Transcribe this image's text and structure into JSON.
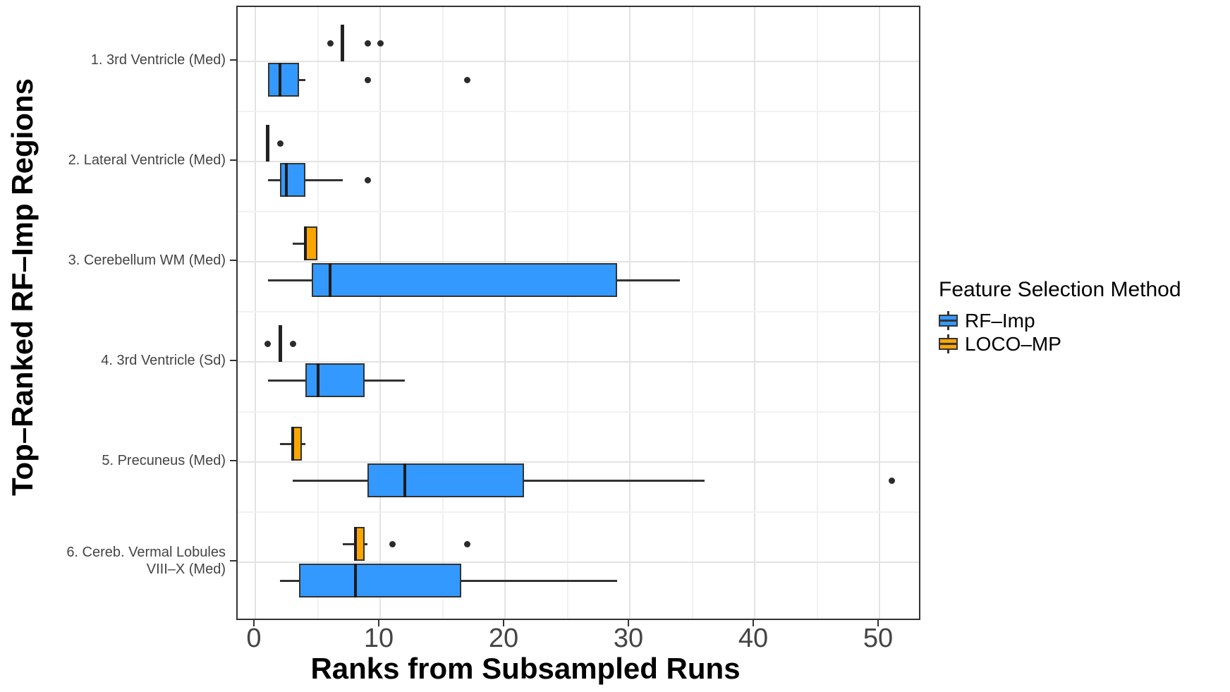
{
  "chart_data": {
    "type": "boxplot",
    "orientation": "horizontal",
    "title": "",
    "xlabel": "Ranks from Subsampled Runs",
    "ylabel": "Top–Ranked RF–Imp Regions",
    "xlim": [
      -1.5,
      53.5
    ],
    "xticks": [
      0,
      10,
      20,
      30,
      40,
      50
    ],
    "xminor_gridlines": [
      5,
      15,
      25,
      35,
      45
    ],
    "grid": "major and minor vertical gridlines; major horizontal gridline per category, minor between categories",
    "legend": {
      "title": "Feature Selection Method",
      "position": "right",
      "entries": [
        {
          "label": "RF–Imp",
          "color": "#3399FF"
        },
        {
          "label": "LOCO–MP",
          "color": "#F9A602"
        }
      ]
    },
    "series_order_within_group": [
      "LOCO–MP on top",
      "RF–Imp on bottom"
    ],
    "groups": [
      {
        "label_lines": [
          "1. 3rd Ventricle (Med)"
        ],
        "boxes": [
          {
            "series": "LOCO–MP",
            "color": "#F9A602",
            "low": 7,
            "q1": 7,
            "median": 7,
            "q3": 7,
            "high": 7,
            "outliers": [
              6,
              9,
              10
            ],
            "degenerate": true
          },
          {
            "series": "RF–Imp",
            "color": "#3399FF",
            "low": 1,
            "q1": 1,
            "median": 2,
            "q3": 3.5,
            "high": 4,
            "outliers": [
              9,
              17
            ],
            "degenerate": false
          }
        ]
      },
      {
        "label_lines": [
          "2. Lateral Ventricle (Med)"
        ],
        "boxes": [
          {
            "series": "LOCO–MP",
            "color": "#F9A602",
            "low": 1,
            "q1": 1,
            "median": 1,
            "q3": 1,
            "high": 1,
            "outliers": [
              2
            ],
            "degenerate": true
          },
          {
            "series": "RF–Imp",
            "color": "#3399FF",
            "low": 1,
            "q1": 2,
            "median": 2.5,
            "q3": 4,
            "high": 7,
            "outliers": [
              9
            ],
            "degenerate": false
          }
        ]
      },
      {
        "label_lines": [
          "3. Cerebellum WM (Med)"
        ],
        "boxes": [
          {
            "series": "LOCO–MP",
            "color": "#F9A602",
            "low": 3,
            "q1": 4,
            "median": 4,
            "q3": 5,
            "high": 5,
            "outliers": [],
            "degenerate": false
          },
          {
            "series": "RF–Imp",
            "color": "#3399FF",
            "low": 1,
            "q1": 4.5,
            "median": 6,
            "q3": 29,
            "high": 34,
            "outliers": [],
            "degenerate": false
          }
        ]
      },
      {
        "label_lines": [
          "4. 3rd Ventricle (Sd)"
        ],
        "boxes": [
          {
            "series": "LOCO–MP",
            "color": "#F9A602",
            "low": 2,
            "q1": 2,
            "median": 2,
            "q3": 2,
            "high": 2,
            "outliers": [
              1,
              3
            ],
            "degenerate": true
          },
          {
            "series": "RF–Imp",
            "color": "#3399FF",
            "low": 1,
            "q1": 4,
            "median": 5,
            "q3": 8.75,
            "high": 12,
            "outliers": [],
            "degenerate": false
          }
        ]
      },
      {
        "label_lines": [
          "5. Precuneus (Med)"
        ],
        "boxes": [
          {
            "series": "LOCO–MP",
            "color": "#F9A602",
            "low": 2,
            "q1": 3,
            "median": 3,
            "q3": 3.75,
            "high": 4,
            "outliers": [],
            "degenerate": false
          },
          {
            "series": "RF–Imp",
            "color": "#3399FF",
            "low": 3,
            "q1": 9,
            "median": 12,
            "q3": 21.5,
            "high": 36,
            "outliers": [
              51
            ],
            "degenerate": false
          }
        ]
      },
      {
        "label_lines": [
          "6. Cereb. Vermal Lobules",
          "VIII–X (Med)"
        ],
        "boxes": [
          {
            "series": "LOCO–MP",
            "color": "#F9A602",
            "low": 7,
            "q1": 8,
            "median": 8,
            "q3": 8.75,
            "high": 9,
            "outliers": [
              11,
              17
            ],
            "degenerate": false
          },
          {
            "series": "RF–Imp",
            "color": "#3399FF",
            "low": 2,
            "q1": 3.5,
            "median": 8,
            "q3": 16.5,
            "high": 29,
            "outliers": [],
            "degenerate": false
          }
        ]
      }
    ],
    "style": {
      "box_border": "#333333",
      "median_color": "#1c1c1c",
      "whisker_color": "#333333",
      "outlier_color": "#2b2b2b",
      "panel_border": "#333333",
      "grid_major": "#e3e3e3",
      "grid_minor": "#f1f1f1",
      "tick_label_color": "#444444",
      "axis_title_color": "#000000",
      "background": "#ffffff"
    }
  }
}
